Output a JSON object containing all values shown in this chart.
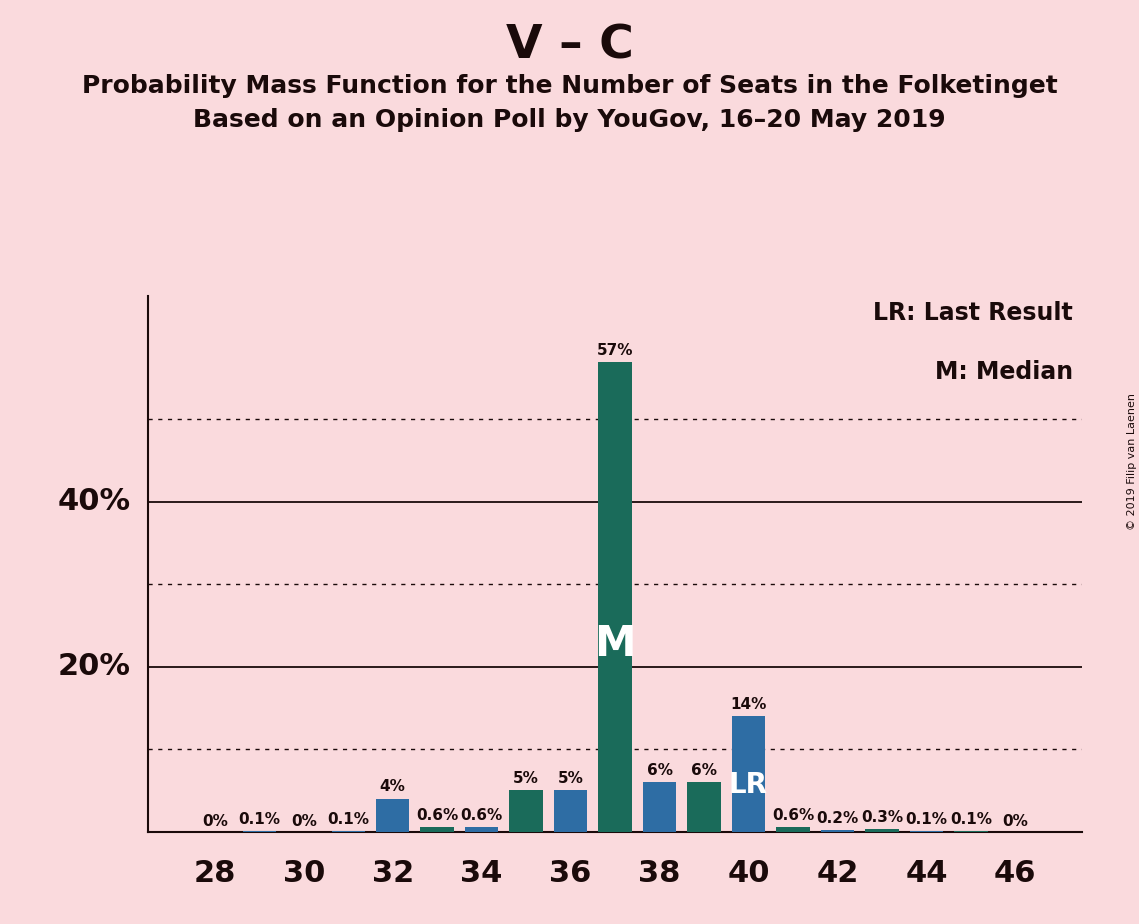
{
  "title_main": "V – C",
  "title_sub1": "Probability Mass Function for the Number of Seats in the Folketinget",
  "title_sub2": "Based on an Opinion Poll by YouGov, 16–20 May 2019",
  "copyright_text": "© 2019 Filip van Laenen",
  "legend_line1": "LR: Last Result",
  "legend_line2": "M: Median",
  "background_color": "#fadadd",
  "bar_color_blue": "#2e6da4",
  "bar_color_teal": "#1a6b5a",
  "text_color": "#1a0a0a",
  "seats": [
    28,
    29,
    30,
    31,
    32,
    33,
    34,
    35,
    36,
    37,
    38,
    39,
    40,
    41,
    42,
    43,
    44,
    45,
    46
  ],
  "values": [
    0.0,
    0.1,
    0.0,
    0.1,
    4.0,
    0.6,
    0.6,
    5.0,
    5.0,
    57.0,
    6.0,
    6.0,
    14.0,
    0.6,
    0.2,
    0.3,
    0.1,
    0.1,
    0.0
  ],
  "labels": [
    "0%",
    "0.1%",
    "0%",
    "0.1%",
    "4%",
    "0.6%",
    "0.6%",
    "5%",
    "5%",
    "57%",
    "6%",
    "6%",
    "14%",
    "0.6%",
    "0.2%",
    "0.3%",
    "0.1%",
    "0.1%",
    "0%"
  ],
  "bar_colors": [
    "blue",
    "blue",
    "blue",
    "blue",
    "blue",
    "teal",
    "blue",
    "teal",
    "blue",
    "teal",
    "blue",
    "teal",
    "blue",
    "teal",
    "blue",
    "teal",
    "blue",
    "teal",
    "teal"
  ],
  "median_seat": 37,
  "lr_seat": 40,
  "ylim_max": 65,
  "solid_lines": [
    20,
    40
  ],
  "dotted_lines": [
    10,
    30,
    50
  ],
  "xticks": [
    28,
    30,
    32,
    34,
    36,
    38,
    40,
    42,
    44,
    46
  ],
  "bar_width": 0.75
}
